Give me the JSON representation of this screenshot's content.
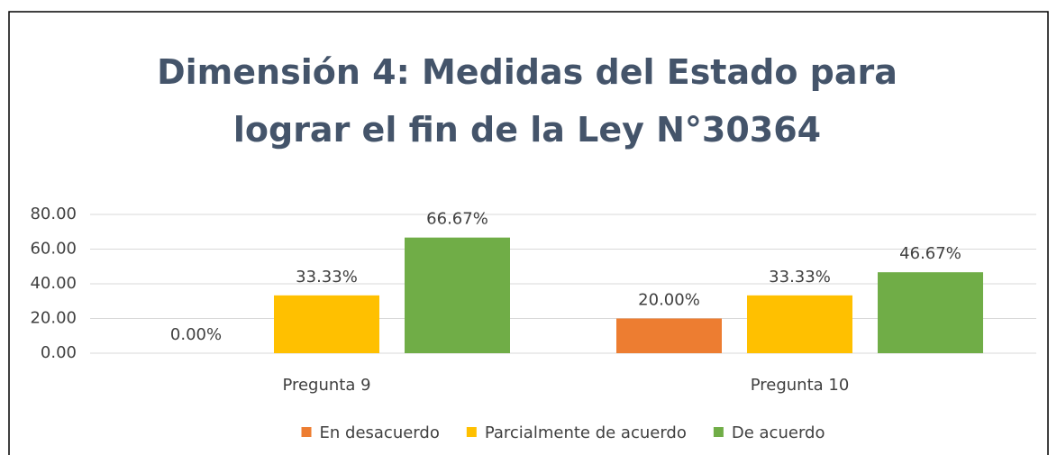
{
  "chart_data": {
    "type": "bar",
    "title": "Dimensión 4: Medidas del Estado para lograr el fin de la Ley N°30364",
    "categories": [
      "Pregunta 9",
      "Pregunta 10"
    ],
    "series": [
      {
        "name": "En desacuerdo",
        "color": "#ed7d31",
        "values": [
          0,
          20
        ],
        "value_labels": [
          "0.00%",
          "20.00%"
        ]
      },
      {
        "name": "Parcialmente de acuerdo",
        "color": "#ffc000",
        "values": [
          33.33,
          33.33
        ],
        "value_labels": [
          "33.33%",
          "33.33%"
        ]
      },
      {
        "name": "De acuerdo",
        "color": "#70ad47",
        "values": [
          66.67,
          46.67
        ],
        "value_labels": [
          "66.67%",
          "46.67%"
        ]
      }
    ],
    "ylim": [
      0,
      80
    ],
    "yticks": [
      {
        "value": 0,
        "label": "0.00"
      },
      {
        "value": 20,
        "label": "20.00"
      },
      {
        "value": 40,
        "label": "40.00"
      },
      {
        "value": 60,
        "label": "60.00"
      },
      {
        "value": 80,
        "label": "80.00"
      }
    ],
    "grid": true,
    "legend": "bottom"
  }
}
